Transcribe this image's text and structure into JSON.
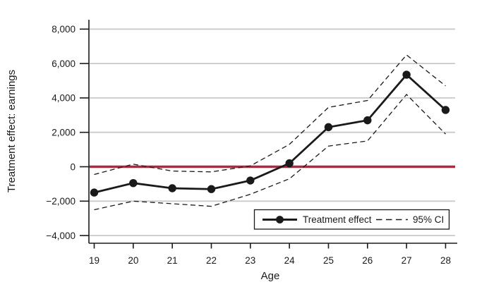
{
  "figure": {
    "title": "",
    "xlabel": "Age",
    "ylabel": "Treatment effect: earnings"
  },
  "legend": {
    "treatment_label": "Treatment effect",
    "ci_label": "95% CI"
  },
  "chart_data": {
    "type": "line",
    "x": [
      19,
      20,
      21,
      22,
      23,
      24,
      25,
      26,
      27,
      28
    ],
    "series": [
      {
        "name": "Treatment effect",
        "style": "solid-with-markers",
        "values": [
          -1500,
          -950,
          -1250,
          -1300,
          -800,
          200,
          2300,
          2700,
          5350,
          3300
        ]
      },
      {
        "name": "95% CI upper",
        "style": "dashed",
        "values": [
          -450,
          150,
          -250,
          -300,
          50,
          1300,
          3450,
          3850,
          6500,
          4700
        ]
      },
      {
        "name": "95% CI lower",
        "style": "dashed",
        "values": [
          -2500,
          -2000,
          -2150,
          -2300,
          -1600,
          -700,
          1200,
          1500,
          4200,
          1900
        ]
      }
    ],
    "xticks": [
      19,
      20,
      21,
      22,
      23,
      24,
      25,
      26,
      27,
      28
    ],
    "xtick_labels": [
      "19",
      "20",
      "21",
      "22",
      "23",
      "24",
      "25",
      "26",
      "27",
      "28"
    ],
    "yticks": [
      -4000,
      -2000,
      0,
      2000,
      4000,
      6000,
      8000
    ],
    "ytick_labels": [
      "−4,000",
      "−2,000",
      "0",
      "2,000",
      "4,000",
      "6,000",
      "8,000"
    ],
    "ylim": [
      -4400,
      8500
    ],
    "xlabel": "Age",
    "ylabel": "Treatment effect: earnings",
    "reference_line_y": 0,
    "grid": true,
    "legend_position": "inside-bottom-right",
    "colors": {
      "line": "#1a1a1a",
      "ci_line": "#1a1a1a",
      "zero_line": "#b52440",
      "grid": "#c9c9c9",
      "axis": "#1a1a1a",
      "background": "#ffffff"
    }
  }
}
